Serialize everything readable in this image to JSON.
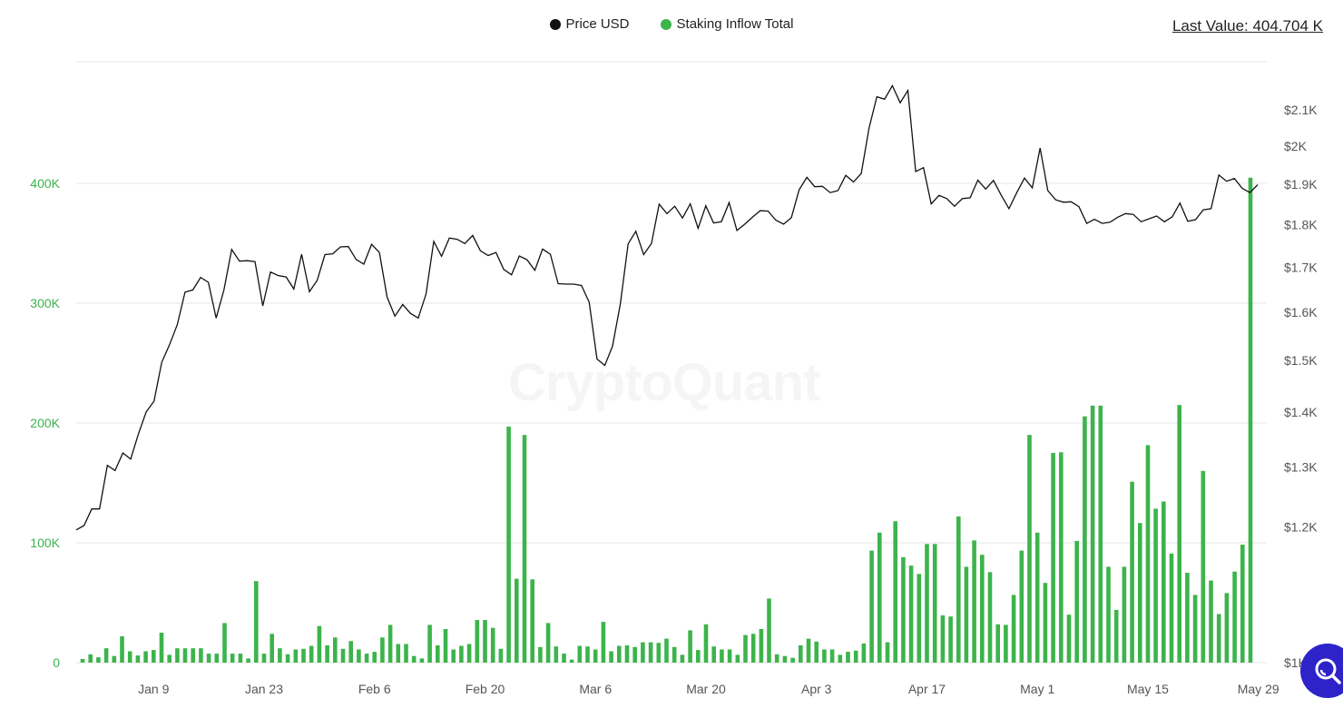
{
  "legend": [
    {
      "label": "Price USD",
      "color": "#111111"
    },
    {
      "label": "Staking Inflow Total",
      "color": "#3cb44b"
    }
  ],
  "last_value": "Last Value: 404.704 K",
  "watermark": "CryptoQuant",
  "fab_icon": "search-icon",
  "chart_data": {
    "type": "bar+line",
    "x_tick_labels": [
      "Jan 9",
      "Jan 23",
      "Feb 6",
      "Feb 20",
      "Mar 6",
      "Mar 20",
      "Apr 3",
      "Apr 17",
      "May 1",
      "May 15",
      "May 29"
    ],
    "left_axis": {
      "ticks": [
        "0",
        "100K",
        "200K",
        "300K",
        "400K"
      ],
      "ylim": [
        0,
        400000
      ],
      "color": "#3cb44b"
    },
    "right_axis": {
      "ticks": [
        "$1K",
        "$1.2K",
        "$1.3K",
        "$1.4K",
        "$1.5K",
        "$1.6K",
        "$1.7K",
        "$1.8K",
        "$1.9K",
        "$2K",
        "$2.1K"
      ],
      "scale": "log",
      "ylim": [
        1000,
        2100
      ]
    },
    "series": [
      {
        "name": "Staking Inflow Total",
        "type": "bar",
        "color": "#3cb44b",
        "values": [
          3000,
          7000,
          4500,
          12000,
          5500,
          22000,
          9500,
          6000,
          9500,
          10500,
          25000,
          6500,
          12000,
          12000,
          12000,
          12000,
          7500,
          7500,
          33000,
          7500,
          7500,
          3500,
          68000,
          7500,
          24000,
          12000,
          7000,
          11000,
          11500,
          14000,
          30500,
          14500,
          21000,
          11500,
          18000,
          11000,
          7500,
          9000,
          21000,
          31500,
          15500,
          15500,
          5500,
          3500,
          31500,
          14500,
          28000,
          11000,
          14000,
          15500,
          35500,
          35500,
          29000,
          11500,
          197000,
          70000,
          190000,
          69500,
          13000,
          33000,
          13500,
          7500,
          2500,
          14000,
          13500,
          11000,
          34000,
          9500,
          14000,
          14500,
          13000,
          17000,
          17000,
          16500,
          20000,
          13000,
          6500,
          27000,
          10500,
          32000,
          13500,
          11000,
          11000,
          6500,
          23000,
          24000,
          28000,
          53500,
          7000,
          5500,
          4000,
          14500,
          20000,
          17500,
          11000,
          11000,
          6500,
          9000,
          10000,
          16000,
          93500,
          108500,
          17000,
          118000,
          88000,
          81000,
          74000,
          99000,
          99000,
          39500,
          38500,
          122000,
          80000,
          102000,
          90000,
          75500,
          32000,
          31500,
          56500,
          93500,
          190000,
          108500,
          66500,
          175000,
          175500,
          40000,
          101500,
          205500,
          214500,
          214500,
          80000,
          44000,
          80000,
          151000,
          116500,
          181500,
          128500,
          134500,
          91000,
          215000,
          75000,
          56500,
          160000,
          68500,
          40500,
          58000,
          76000,
          98500,
          404704
        ]
      },
      {
        "name": "Price USD",
        "type": "line",
        "color": "#111111",
        "values": [
          1195,
          1202,
          1229,
          1229,
          1303,
          1294,
          1325,
          1314,
          1359,
          1400,
          1420,
          1496,
          1532,
          1574,
          1644,
          1649,
          1677,
          1666,
          1588,
          1649,
          1741,
          1714,
          1715,
          1713,
          1614,
          1689,
          1681,
          1678,
          1651,
          1730,
          1645,
          1670,
          1729,
          1731,
          1747,
          1748,
          1718,
          1707,
          1753,
          1734,
          1633,
          1592,
          1617,
          1598,
          1588,
          1640,
          1760,
          1725,
          1768,
          1765,
          1755,
          1774,
          1738,
          1727,
          1734,
          1695,
          1683,
          1726,
          1717,
          1693,
          1742,
          1730,
          1663,
          1662,
          1662,
          1659,
          1622,
          1503,
          1490,
          1529,
          1618,
          1754,
          1784,
          1729,
          1755,
          1850,
          1827,
          1845,
          1816,
          1851,
          1791,
          1846,
          1804,
          1807,
          1854,
          1786,
          1801,
          1818,
          1834,
          1833,
          1811,
          1801,
          1817,
          1886,
          1918,
          1894,
          1895,
          1879,
          1884,
          1923,
          1906,
          1928,
          2049,
          2137,
          2130,
          2169,
          2120,
          2155,
          1933,
          1943,
          1851,
          1872,
          1864,
          1845,
          1864,
          1866,
          1911,
          1888,
          1910,
          1873,
          1839,
          1879,
          1916,
          1891,
          1995,
          1884,
          1861,
          1855,
          1856,
          1844,
          1803,
          1813,
          1803,
          1806,
          1818,
          1827,
          1825,
          1807,
          1814,
          1821,
          1807,
          1819,
          1853,
          1808,
          1812,
          1836,
          1839,
          1924,
          1908,
          1915,
          1890,
          1879,
          1899
        ]
      }
    ]
  }
}
